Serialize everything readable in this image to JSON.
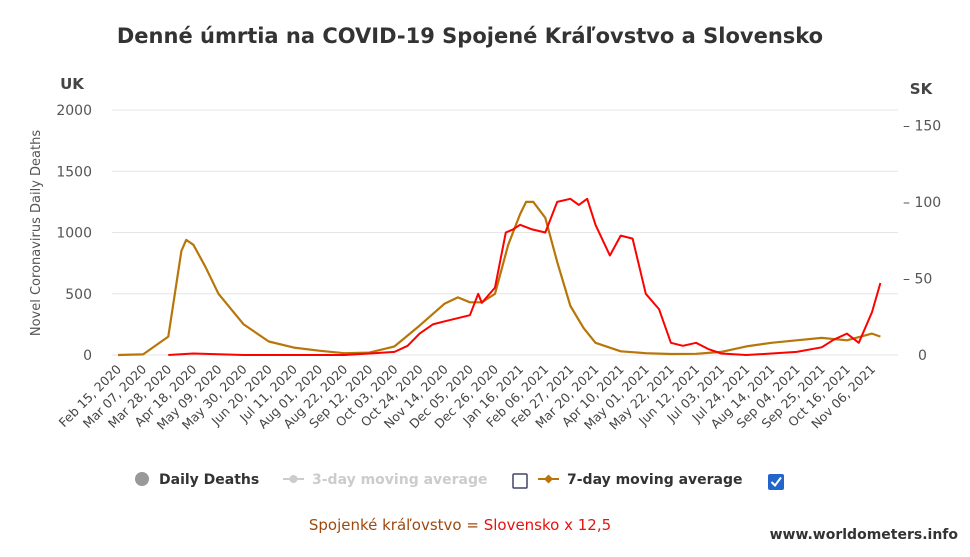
{
  "chart_data": {
    "type": "line",
    "title": "Denné úmrtia na COVID-19 Spojené Kráľovstvo a Slovensko",
    "left_axis_head": "UK",
    "right_axis_head": "SK",
    "ylabel": "Novel Coronavirus Daily Deaths",
    "ylim": [
      0,
      2000
    ],
    "yticks": [
      0,
      500,
      1000,
      1500,
      2000
    ],
    "y2lim": [
      0,
      160
    ],
    "y2ticks": [
      0,
      50,
      100,
      150
    ],
    "x_ticks": [
      "Feb 15, 2020",
      "Mar 07, 2020",
      "Mar 28, 2020",
      "Apr 18, 2020",
      "May 09, 2020",
      "May 30, 2020",
      "Jun 20, 2020",
      "Jul 11, 2020",
      "Aug 01, 2020",
      "Aug 22, 2020",
      "Sep 12, 2020",
      "Oct 03, 2020",
      "Oct 24, 2020",
      "Nov 14, 2020",
      "Dec 05, 2020",
      "Dec 26, 2020",
      "Jan 16, 2021",
      "Feb 06, 2021",
      "Feb 27, 2021",
      "Mar 20, 2021",
      "Apr 10, 2021",
      "May 01, 2021",
      "May 22, 2021",
      "Jun 12, 2021",
      "Jul 03, 2021",
      "Jul 24, 2021",
      "Aug 14, 2021",
      "Sep 04, 2021",
      "Sep 25, 2021",
      "Oct 16, 2021",
      "Nov 06, 2021"
    ],
    "grid": true,
    "series": [
      {
        "name": "Spojené kráľovstvo",
        "color": "#b8760a",
        "axis": "left",
        "x": [
          "Feb 15, 2020",
          "Mar 07, 2020",
          "Mar 28, 2020",
          "Apr 08, 2020",
          "Apr 12, 2020",
          "Apr 18, 2020",
          "Apr 28, 2020",
          "May 09, 2020",
          "May 30, 2020",
          "Jun 20, 2020",
          "Jul 11, 2020",
          "Aug 01, 2020",
          "Aug 22, 2020",
          "Sep 12, 2020",
          "Oct 03, 2020",
          "Oct 24, 2020",
          "Nov 14, 2020",
          "Nov 25, 2020",
          "Dec 05, 2020",
          "Dec 15, 2020",
          "Dec 26, 2020",
          "Jan 06, 2021",
          "Jan 16, 2021",
          "Jan 21, 2021",
          "Jan 27, 2021",
          "Feb 06, 2021",
          "Feb 16, 2021",
          "Feb 27, 2021",
          "Mar 10, 2021",
          "Mar 20, 2021",
          "Apr 10, 2021",
          "May 01, 2021",
          "May 22, 2021",
          "Jun 12, 2021",
          "Jul 03, 2021",
          "Jul 24, 2021",
          "Aug 14, 2021",
          "Sep 04, 2021",
          "Sep 25, 2021",
          "Oct 16, 2021",
          "Nov 06, 2021",
          "Nov 13, 2021"
        ],
        "values": [
          0,
          5,
          150,
          850,
          940,
          900,
          720,
          500,
          250,
          110,
          60,
          35,
          15,
          20,
          70,
          240,
          420,
          470,
          430,
          430,
          500,
          900,
          1150,
          1250,
          1250,
          1120,
          760,
          400,
          220,
          100,
          30,
          15,
          8,
          10,
          25,
          70,
          100,
          120,
          140,
          120,
          175,
          150
        ]
      },
      {
        "name": "Slovensko x 12,5",
        "color": "#ff0000",
        "axis": "right",
        "x": [
          "Mar 28, 2020",
          "Apr 18, 2020",
          "May 30, 2020",
          "Jul 11, 2020",
          "Aug 22, 2020",
          "Sep 12, 2020",
          "Oct 03, 2020",
          "Oct 14, 2020",
          "Oct 24, 2020",
          "Nov 04, 2020",
          "Nov 14, 2020",
          "Dec 05, 2020",
          "Dec 12, 2020",
          "Dec 15, 2020",
          "Dec 26, 2020",
          "Jan 04, 2021",
          "Jan 10, 2021",
          "Jan 16, 2021",
          "Jan 26, 2021",
          "Feb 06, 2021",
          "Feb 16, 2021",
          "Feb 27, 2021",
          "Mar 06, 2021",
          "Mar 13, 2021",
          "Mar 20, 2021",
          "Apr 01, 2021",
          "Apr 10, 2021",
          "Apr 20, 2021",
          "May 01, 2021",
          "May 12, 2021",
          "May 22, 2021",
          "Jun 01, 2021",
          "Jun 12, 2021",
          "Jun 22, 2021",
          "Jul 03, 2021",
          "Jul 24, 2021",
          "Aug 14, 2021",
          "Sep 04, 2021",
          "Sep 25, 2021",
          "Oct 05, 2021",
          "Oct 16, 2021",
          "Oct 26, 2021",
          "Nov 06, 2021",
          "Nov 13, 2021"
        ],
        "values": [
          0,
          1,
          0,
          0,
          0,
          1,
          2,
          6,
          14,
          20,
          22,
          26,
          40,
          34,
          44,
          80,
          82,
          85,
          82,
          80,
          100,
          102,
          98,
          102,
          85,
          65,
          78,
          76,
          40,
          30,
          8,
          6,
          8,
          4,
          1,
          0,
          1,
          2,
          5,
          10,
          14,
          8,
          28,
          47
        ]
      }
    ],
    "legend": {
      "daily_deaths": "Daily Deaths",
      "three_day": "3-day moving average",
      "seven_day": "7-day moving average",
      "seven_day_checked": true,
      "three_day_checked": false
    },
    "note": {
      "left": "Spojenké kráľovstvo",
      "equals": " = ",
      "right": "Slovensko x 12,5"
    },
    "source": "www.worldometers.info"
  }
}
